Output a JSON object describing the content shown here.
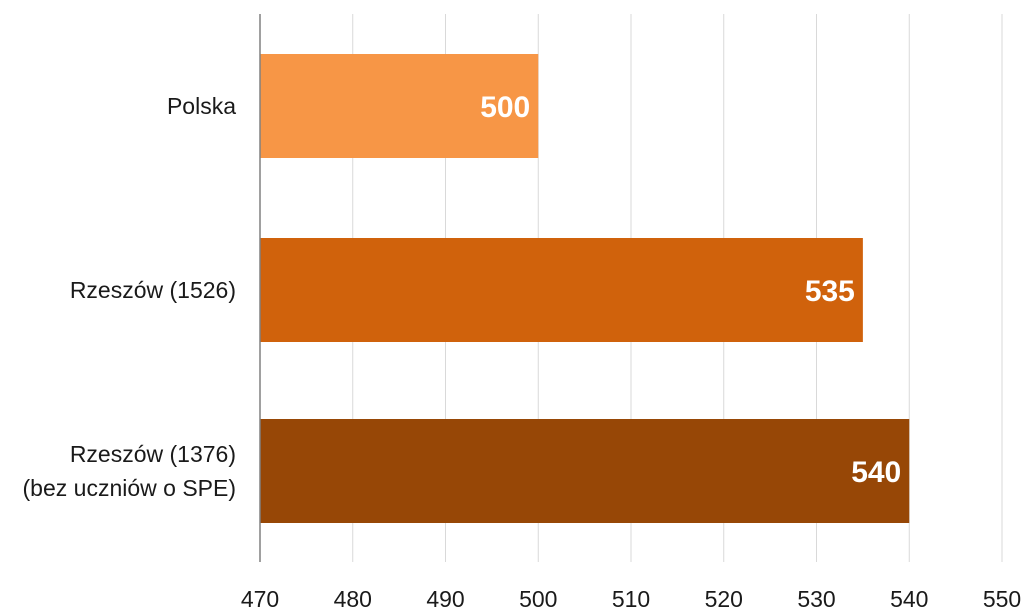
{
  "chart_data": {
    "type": "bar",
    "orientation": "horizontal",
    "title": "",
    "xlabel": "",
    "ylabel": "",
    "categories": [
      [
        "Polska"
      ],
      [
        "Rzeszów (1526)"
      ],
      [
        "Rzeszów (1376)",
        "(bez uczniów o SPE)"
      ]
    ],
    "values": [
      500,
      535,
      540
    ],
    "bar_colors": [
      "#F79646",
      "#D0620C",
      "#974706"
    ],
    "xlim": [
      470,
      550
    ],
    "xticks": [
      470,
      480,
      490,
      500,
      510,
      520,
      530,
      540,
      550
    ],
    "xtick_labels": [
      "470",
      "480",
      "490",
      "500",
      "510",
      "520",
      "530",
      "540",
      "550"
    ],
    "data_labels": [
      "500",
      "535",
      "540"
    ],
    "grid": true,
    "grid_color": "#d9d9d9",
    "axis_color": "#808080",
    "legend": "none"
  }
}
